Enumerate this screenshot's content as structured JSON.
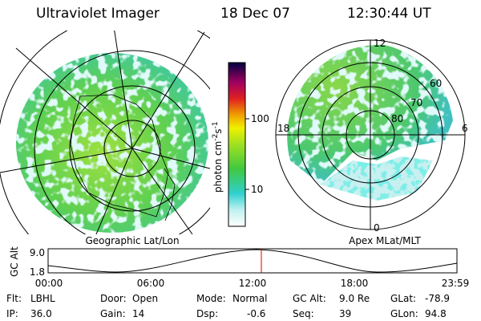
{
  "header": {
    "instrument": "Ultraviolet Imager",
    "date": "18 Dec 07",
    "time": "12:30:44 UT"
  },
  "colorbar": {
    "ticks": [
      "100",
      "10"
    ],
    "unit": {
      "base": "photon cm",
      "exp1": "-2",
      "mid": "s",
      "exp2": "-1"
    }
  },
  "left_panel": {
    "label": "Geographic Lat/Lon"
  },
  "right_panel": {
    "label": "Apex MLat/MLT",
    "mlt": [
      "12",
      "18",
      "6",
      "0"
    ],
    "mlat": [
      "60",
      "70",
      "80"
    ]
  },
  "altitude_plot": {
    "axis_label": "GC Alt",
    "yticks": [
      "9.0",
      "1.8"
    ],
    "xticks": [
      "00:00",
      "06:00",
      "12:00",
      "18:00",
      "23:59"
    ]
  },
  "info": {
    "rows": [
      [
        {
          "label": "Flt:",
          "value": "LBHL"
        },
        {
          "label": "Door:",
          "value": "Open"
        },
        {
          "label": "Mode:",
          "value": "Normal"
        },
        {
          "label": "GC Alt:",
          "value": "9.0 Re"
        },
        {
          "label": "GLat:",
          "value": "-78.9"
        }
      ],
      [
        {
          "label": "IP:",
          "value": "36.0"
        },
        {
          "label": "Gain:",
          "value": "14"
        },
        {
          "label": "Dsp:",
          "value": "-0.6"
        },
        {
          "label": "Seq:",
          "value": "39"
        },
        {
          "label": "GLon:",
          "value": "94.8"
        }
      ]
    ]
  }
}
